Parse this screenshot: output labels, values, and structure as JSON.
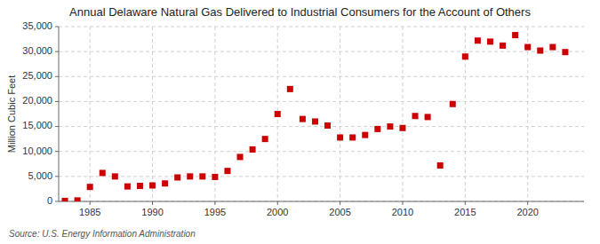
{
  "chart_data": {
    "type": "scatter",
    "title": "Annual Delaware Natural Gas Delivered to Industrial Consumers for the Account of Others",
    "y_label": "Million Cubic Feet",
    "annotations": [
      "Source: U.S. Energy Information Administration"
    ],
    "x": [
      1983,
      1984,
      1985,
      1986,
      1987,
      1988,
      1989,
      1990,
      1991,
      1992,
      1993,
      1994,
      1995,
      1996,
      1997,
      1998,
      1999,
      2000,
      2001,
      2002,
      2003,
      2004,
      2005,
      2006,
      2007,
      2008,
      2009,
      2010,
      2011,
      2012,
      2013,
      2014,
      2015,
      2016,
      2017,
      2018,
      2019,
      2020,
      2021,
      2022,
      2023
    ],
    "values": [
      100,
      200,
      2900,
      5700,
      5000,
      3000,
      3100,
      3200,
      3600,
      4800,
      5000,
      5000,
      4900,
      6100,
      8900,
      10400,
      12500,
      17500,
      22500,
      16500,
      16000,
      15200,
      12800,
      12800,
      13300,
      14500,
      15000,
      14700,
      17100,
      16900,
      7200,
      19500,
      29000,
      32200,
      32000,
      31200,
      33300,
      30900,
      30200,
      30900,
      29900
    ],
    "color": "#cc0000",
    "marker": "square",
    "xlim": [
      1982.5,
      2024.5
    ],
    "xticks": [
      1985,
      1990,
      1995,
      2000,
      2005,
      2010,
      2015,
      2020
    ],
    "ylim": [
      0,
      35000
    ],
    "yticks": [
      0,
      {
        "value": 5000,
        "label": "5,000"
      },
      {
        "value": 10000,
        "label": "10,000"
      },
      {
        "value": 15000,
        "label": "15,000"
      },
      {
        "value": 20000,
        "label": "20,000"
      },
      {
        "value": 25000,
        "label": "25,000"
      },
      {
        "value": 30000,
        "label": "30,000"
      },
      {
        "value": 35000,
        "label": "35,000"
      }
    ],
    "grid": true
  }
}
